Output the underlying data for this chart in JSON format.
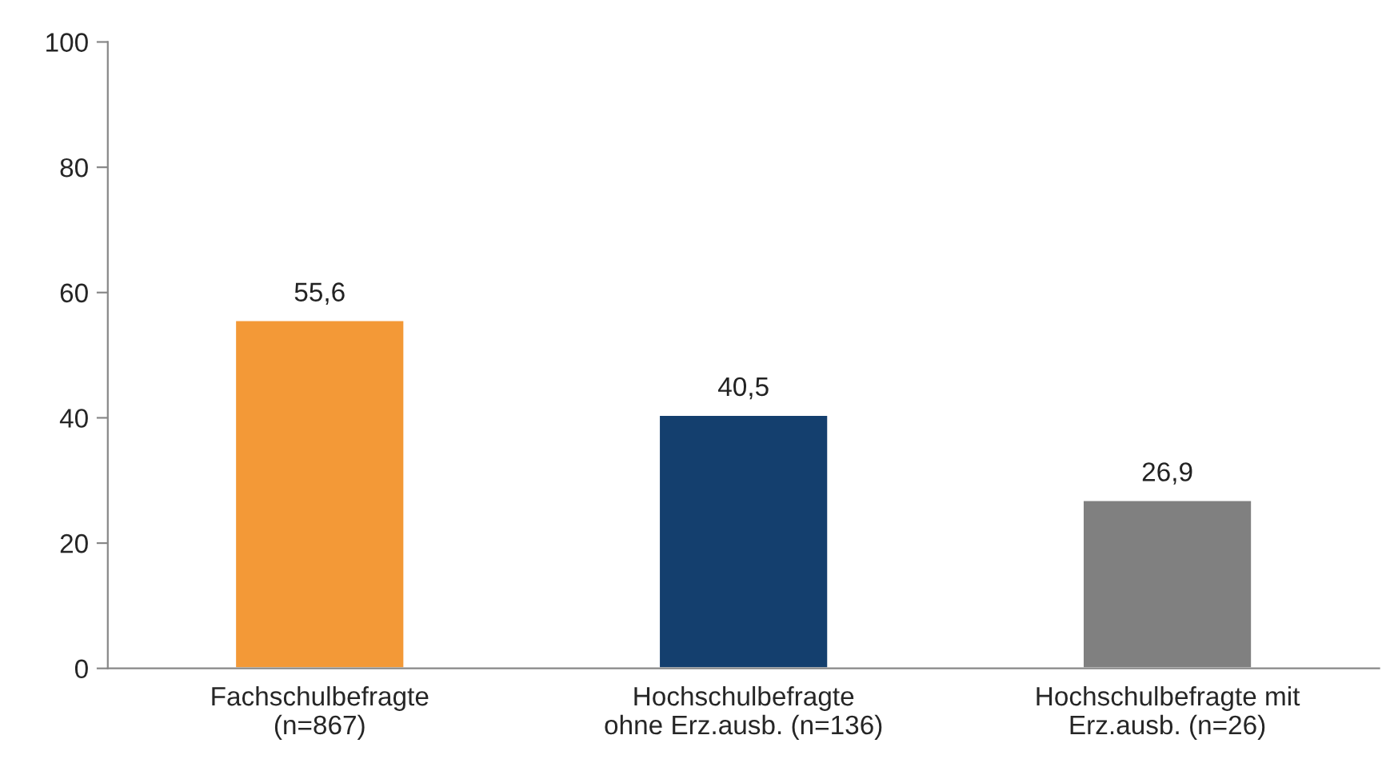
{
  "chart_data": {
    "type": "bar",
    "categories": [
      "Fachschulbefragte\n(n=867)",
      "Hochschulbefragte\nohne Erz.ausb. (n=136)",
      "Hochschulbefragte mit\nErz.ausb. (n=26)"
    ],
    "values": [
      55.6,
      40.5,
      26.9
    ],
    "colors": [
      "#f39937",
      "#143f6e",
      "#808080"
    ],
    "value_labels": [
      "55,6",
      "40,5",
      "26,9"
    ],
    "ylim": [
      0,
      100
    ],
    "yticks": [
      0,
      20,
      40,
      60,
      80,
      100
    ],
    "grid": false
  }
}
